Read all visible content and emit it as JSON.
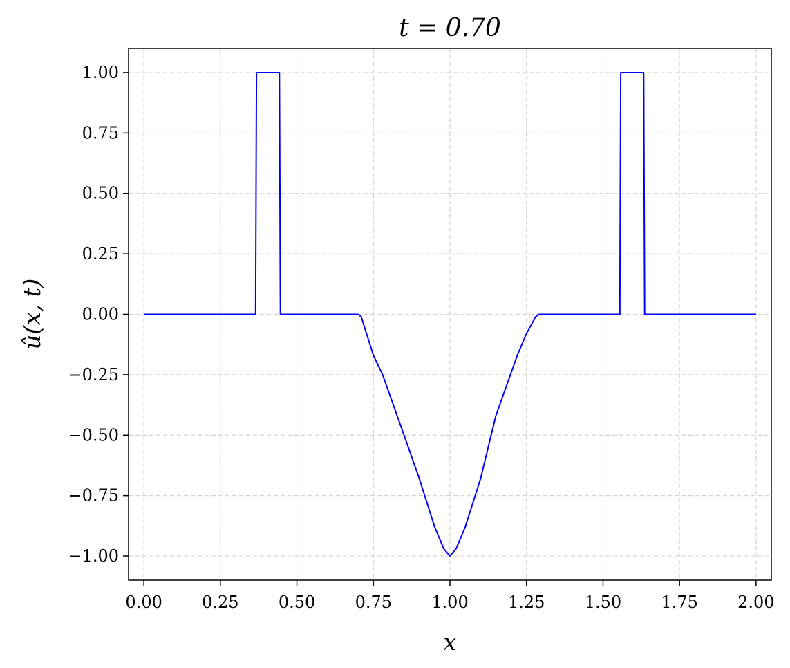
{
  "chart_data": {
    "type": "line",
    "title": "t = 0.70",
    "xlabel": "x",
    "ylabel": "û(x, t)",
    "xlim": [
      -0.05,
      2.05
    ],
    "ylim": [
      -1.1,
      1.1
    ],
    "grid": true,
    "grid_style": "dashed",
    "colors": {
      "line": "#0000ff",
      "grid": "#d3d3d3",
      "axes": "#000000"
    },
    "x_ticks": [
      0,
      0.25,
      0.5,
      0.75,
      1.0,
      1.25,
      1.5,
      1.75,
      2.0
    ],
    "x_tick_labels": [
      "0.00",
      "0.25",
      "0.50",
      "0.75",
      "1.00",
      "1.25",
      "1.50",
      "1.75",
      "2.00"
    ],
    "y_ticks": [
      1.0,
      0.75,
      0.5,
      0.25,
      0.0,
      -0.25,
      -0.5,
      -0.75,
      -1.0
    ],
    "y_tick_labels": [
      "1.00",
      "0.75",
      "0.50",
      "0.25",
      "0.00",
      "−0.25",
      "−0.50",
      "−0.75",
      "−1.00"
    ],
    "series": [
      {
        "x": [
          0.0,
          0.365,
          0.368,
          0.443,
          0.446,
          0.7,
          0.71,
          0.72,
          0.75,
          0.78,
          0.85,
          0.9,
          0.95,
          0.98,
          1.0,
          1.02,
          1.05,
          1.1,
          1.15,
          1.22,
          1.25,
          1.28,
          1.29,
          1.3,
          1.555,
          1.558,
          1.633,
          1.636,
          2.0
        ],
        "y": [
          0.0,
          0.0,
          1.0,
          1.0,
          0.0,
          0.0,
          -0.01,
          -0.05,
          -0.17,
          -0.25,
          -0.5,
          -0.68,
          -0.88,
          -0.97,
          -1.0,
          -0.97,
          -0.88,
          -0.68,
          -0.42,
          -0.17,
          -0.08,
          -0.01,
          0.0,
          0.0,
          0.0,
          1.0,
          1.0,
          0.0,
          0.0
        ]
      }
    ]
  }
}
